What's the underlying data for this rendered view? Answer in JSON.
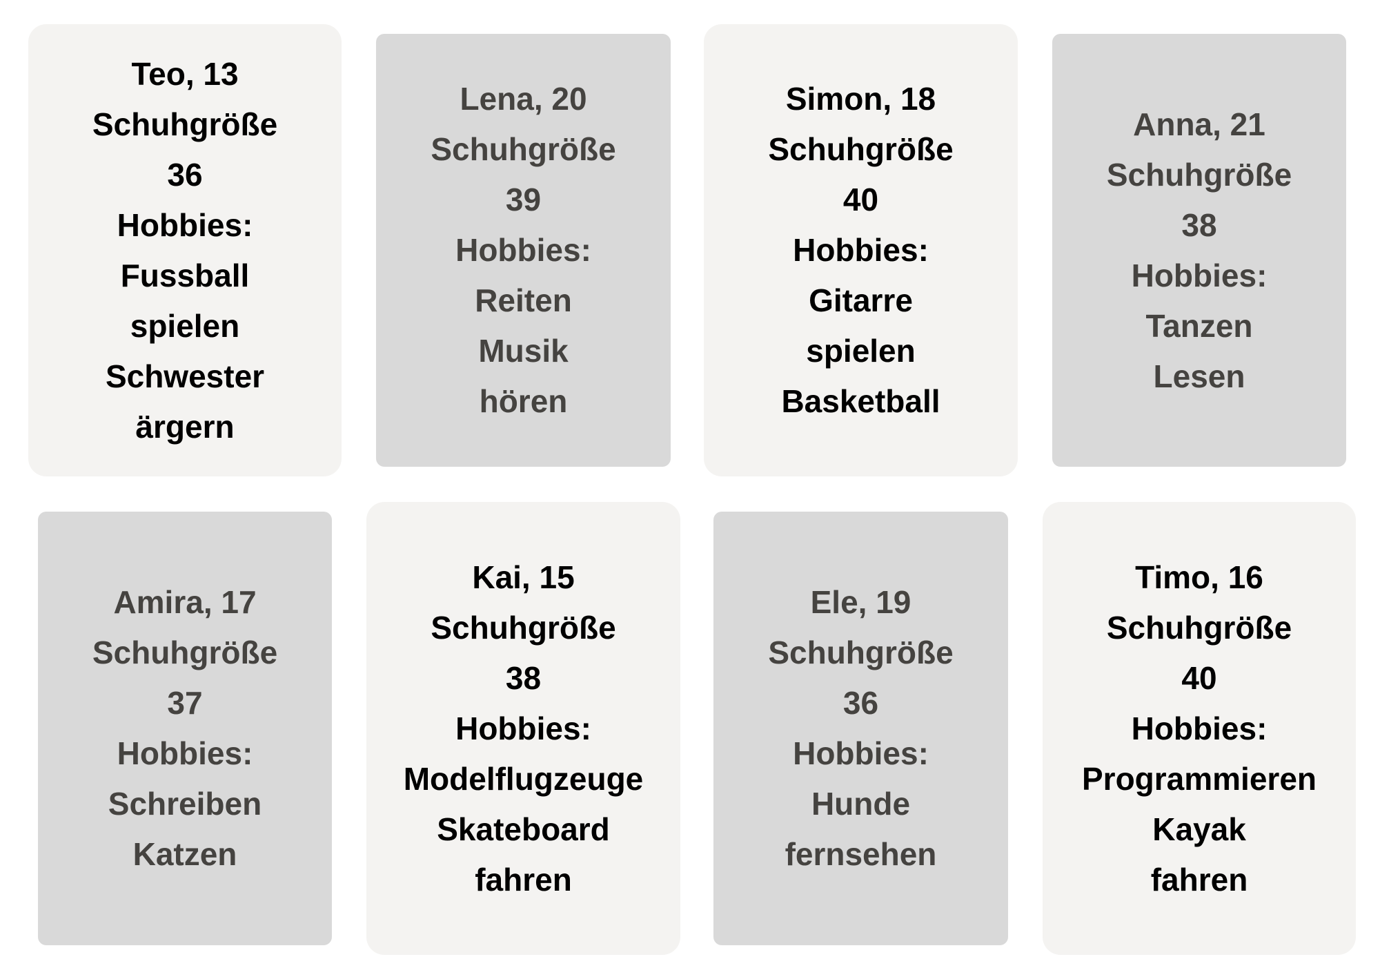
{
  "cards": [
    {
      "lines": [
        "Teo, 13",
        "Schuhgröße",
        "36",
        "Hobbies:",
        "Fussball",
        "spielen",
        "Schwester",
        "ärgern"
      ]
    },
    {
      "lines": [
        "Lena, 20",
        "Schuhgröße",
        "39",
        "Hobbies:",
        "Reiten",
        "Musik",
        "hören"
      ]
    },
    {
      "lines": [
        "Simon, 18",
        "Schuhgröße",
        "40",
        "Hobbies:",
        "Gitarre",
        "spielen",
        "Basketball"
      ]
    },
    {
      "lines": [
        "Anna, 21",
        "Schuhgröße",
        "38",
        "Hobbies:",
        "Tanzen",
        "Lesen"
      ]
    },
    {
      "lines": [
        "Amira, 17",
        "Schuhgröße",
        "37",
        "Hobbies:",
        "Schreiben",
        "Katzen"
      ]
    },
    {
      "lines": [
        "Kai, 15",
        "Schuhgröße",
        "38",
        "Hobbies:",
        "Modelflugzeuge",
        "Skateboard",
        "fahren"
      ]
    },
    {
      "lines": [
        "Ele, 19",
        "Schuhgröße",
        "36",
        "Hobbies:",
        "Hunde",
        "fernsehen"
      ]
    },
    {
      "lines": [
        "Timo, 16",
        "Schuhgröße",
        "40",
        "Hobbies:",
        "Programmieren",
        "Kayak",
        "fahren"
      ]
    }
  ]
}
